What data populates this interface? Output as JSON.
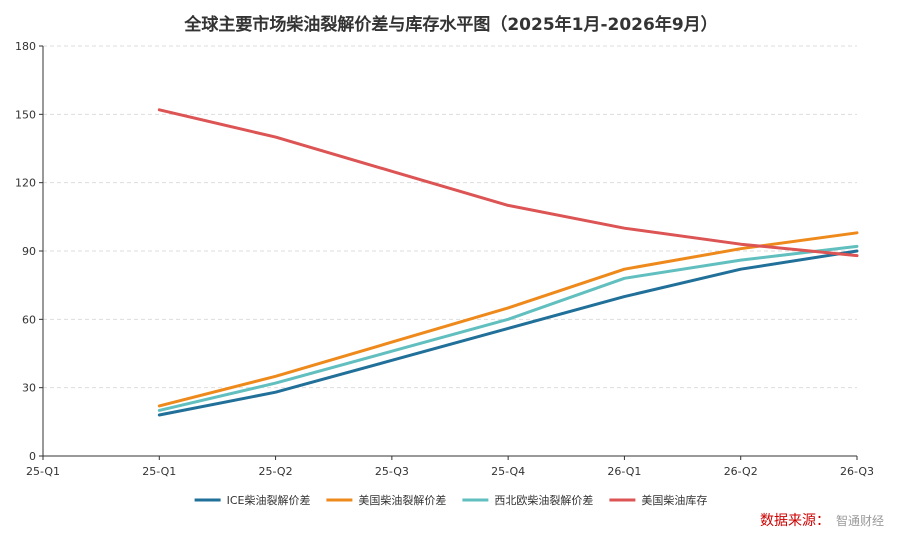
{
  "chart_data": {
    "type": "line",
    "title": "全球主要市场柴油裂解价差与库存水平图（2025年1月-2026年9月）",
    "categories": [
      "25-Q1",
      "25-Q1",
      "25-Q2",
      "25-Q3",
      "25-Q4",
      "26-Q1",
      "26-Q2",
      "26-Q3"
    ],
    "ylim": [
      0,
      180
    ],
    "yticks": [
      0,
      30,
      60,
      90,
      120,
      150,
      180
    ],
    "grid": true,
    "legend_position": "bottom",
    "series": [
      {
        "name": "ICE柴油裂解价差",
        "color": "#21709a",
        "values": [
          null,
          18,
          28,
          42,
          56,
          70,
          82,
          90
        ]
      },
      {
        "name": "美国柴油裂解价差",
        "color": "#ee8a1c",
        "values": [
          null,
          22,
          35,
          50,
          65,
          82,
          91,
          98
        ]
      },
      {
        "name": "西北欧柴油裂解价差",
        "color": "#62bfbf",
        "values": [
          null,
          20,
          32,
          46,
          60,
          78,
          86,
          92
        ]
      },
      {
        "name": "美国柴油库存",
        "color": "#dc5454",
        "values": [
          null,
          152,
          140,
          125,
          110,
          100,
          93,
          88
        ]
      }
    ]
  },
  "source": {
    "label": "数据来源：",
    "logo_text": "智通财经"
  }
}
